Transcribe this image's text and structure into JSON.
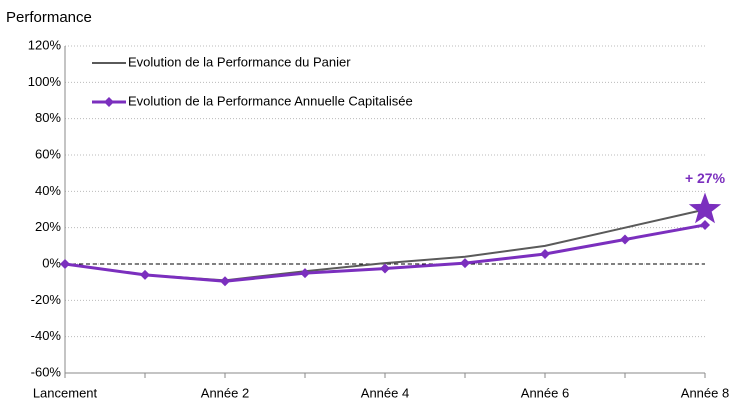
{
  "chart_data": {
    "type": "line",
    "y_label": "Performance",
    "categories": [
      "Lancement",
      null,
      "Année 2",
      null,
      "Année 4",
      null,
      "Année 6",
      null,
      "Année 8"
    ],
    "series": [
      {
        "name": "Evolution de la Performance du Panier",
        "color": "#5a5a5a",
        "values": [
          0,
          -6,
          -9,
          -4,
          0.5,
          4,
          10,
          20,
          30
        ]
      },
      {
        "name": "Evolution de la Performance Annuelle Capitalisée",
        "color": "#7b2fbe",
        "marker": "diamond",
        "values": [
          0,
          -6,
          -9.5,
          -5,
          -2.5,
          0.5,
          5.5,
          13.5,
          21.5
        ]
      }
    ],
    "ylim": [
      -60,
      120
    ],
    "yticks": [
      {
        "value": -60,
        "label": "-60%"
      },
      {
        "value": -40,
        "label": "-40%"
      },
      {
        "value": -20,
        "label": "-20%"
      },
      {
        "value": 0,
        "label": "0%"
      },
      {
        "value": 20,
        "label": "20%"
      },
      {
        "value": 40,
        "label": "40%"
      },
      {
        "value": 60,
        "label": "60%"
      },
      {
        "value": 80,
        "label": "80%"
      },
      {
        "value": 100,
        "label": "100%"
      },
      {
        "value": 120,
        "label": "120%"
      }
    ],
    "grid": true,
    "legend": "upper left",
    "annotation": {
      "text": "+ 27%",
      "color": "#7b2fbe"
    }
  }
}
